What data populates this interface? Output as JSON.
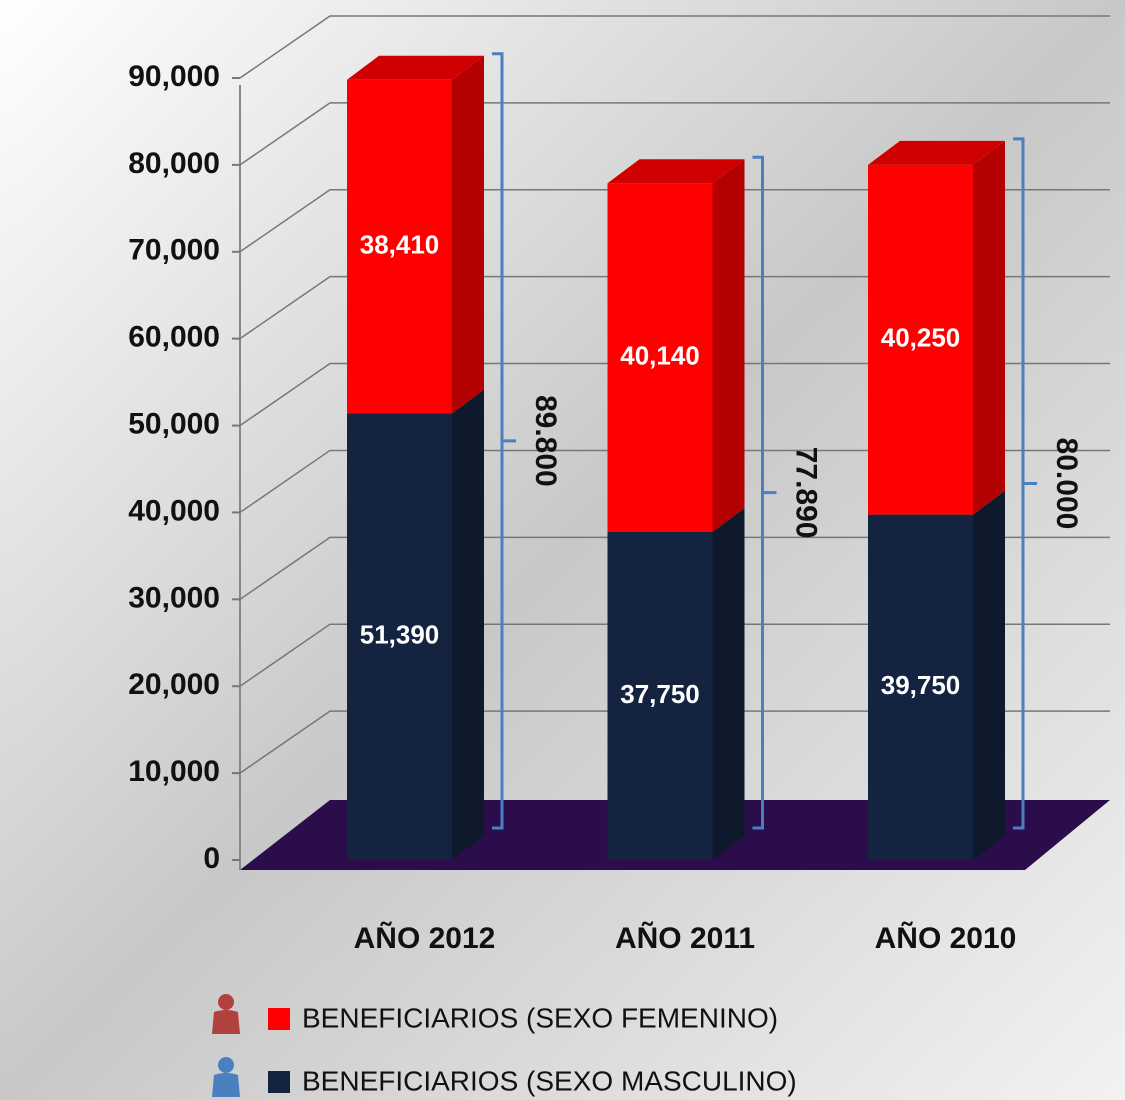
{
  "chart_data": {
    "type": "stacked_bar_3d",
    "categories": [
      "AÑO 2012",
      "AÑO 2011",
      "AÑO 2010"
    ],
    "series": [
      {
        "name": "BENEFICIARIOS (SEXO MASCULINO)",
        "color": "#14233f",
        "values": [
          51390,
          37750,
          39750
        ],
        "value_labels": [
          "51,390",
          "37,750",
          "39,750"
        ]
      },
      {
        "name": "BENEFICIARIOS (SEXO FEMENINO)",
        "color": "#ff0000",
        "values": [
          38410,
          40140,
          40250
        ],
        "value_labels": [
          "38,410",
          "40,140",
          "40,250"
        ]
      }
    ],
    "totals": {
      "values": [
        89800,
        77890,
        80000
      ],
      "value_labels": [
        "89.800",
        "77.890",
        "80.000"
      ]
    },
    "ylim": [
      0,
      90000
    ],
    "yticks": [
      0,
      {
        "value": 10000,
        "label": "10,000"
      },
      {
        "value": 20000,
        "label": "20,000"
      },
      {
        "value": 30000,
        "label": "30,000"
      },
      {
        "value": 40000,
        "label": "40,000"
      },
      {
        "value": 50000,
        "label": "50,000"
      },
      {
        "value": 60000,
        "label": "60,000"
      },
      {
        "value": 70000,
        "label": "70,000"
      },
      {
        "value": 80000,
        "label": "80,000"
      },
      {
        "value": 90000,
        "label": "90,000"
      }
    ],
    "grid": true
  }
}
